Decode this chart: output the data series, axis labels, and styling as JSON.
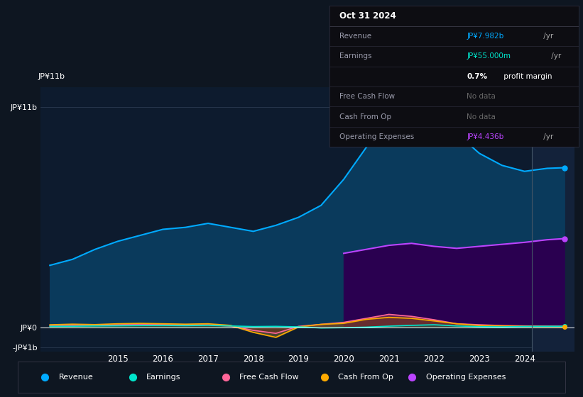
{
  "background_color": "#0e1621",
  "chart_bg_color": "#0d1b2e",
  "ylim": [
    -1200000000.0,
    12000000000.0
  ],
  "y_tick_0": 0,
  "y_tick_top": 11000000000.0,
  "y_tick_bot": -1000000000.0,
  "y_label_top": "JP¥11b",
  "y_label_0": "JP¥0",
  "y_label_bot": "-JP¥1b",
  "x_years": [
    2013.5,
    2014,
    2014.5,
    2015,
    2015.5,
    2016,
    2016.5,
    2017,
    2017.5,
    2018,
    2018.5,
    2019,
    2019.5,
    2020,
    2020.5,
    2021,
    2021.5,
    2022,
    2022.5,
    2023,
    2023.5,
    2024,
    2024.5,
    2024.88
  ],
  "revenue": [
    3100000000,
    3400000000,
    3900000000,
    4300000000,
    4600000000,
    4900000000,
    5000000000,
    5200000000,
    5000000000,
    4800000000,
    5100000000,
    5500000000,
    6100000000,
    7400000000,
    9000000000,
    10400000000,
    10700000000,
    10500000000,
    9700000000,
    8700000000,
    8100000000,
    7800000000,
    7950000000,
    7982000000
  ],
  "earnings": [
    50000000,
    55000000,
    70000000,
    80000000,
    90000000,
    95000000,
    85000000,
    100000000,
    70000000,
    40000000,
    50000000,
    25000000,
    -30000000,
    -15000000,
    10000000,
    60000000,
    100000000,
    130000000,
    70000000,
    35000000,
    25000000,
    45000000,
    52000000,
    55000000
  ],
  "free_cash_flow": [
    80000000,
    100000000,
    90000000,
    130000000,
    160000000,
    140000000,
    120000000,
    130000000,
    60000000,
    -150000000,
    -300000000,
    50000000,
    150000000,
    250000000,
    450000000,
    650000000,
    550000000,
    380000000,
    180000000,
    130000000,
    90000000,
    70000000,
    60000000,
    55000000
  ],
  "cash_from_op": [
    130000000,
    160000000,
    140000000,
    180000000,
    200000000,
    180000000,
    160000000,
    180000000,
    100000000,
    -250000000,
    -500000000,
    20000000,
    150000000,
    200000000,
    400000000,
    500000000,
    450000000,
    320000000,
    180000000,
    90000000,
    70000000,
    50000000,
    45000000,
    40000000
  ],
  "op_expenses_x": [
    2020,
    2020.5,
    2021,
    2021.5,
    2022,
    2022.5,
    2023,
    2023.5,
    2024,
    2024.5,
    2024.88
  ],
  "op_expenses_y": [
    3700000000,
    3900000000,
    4100000000,
    4200000000,
    4050000000,
    3950000000,
    4050000000,
    4150000000,
    4250000000,
    4380000000,
    4436000000
  ],
  "revenue_color": "#00aaff",
  "earnings_color": "#00e5cc",
  "fcf_color": "#ff6699",
  "cfop_color": "#ffaa00",
  "opex_color": "#bb44ff",
  "revenue_fill": "#0a3a5c",
  "opex_fill": "#2a0050",
  "legend_items": [
    {
      "label": "Revenue",
      "color": "#00aaff"
    },
    {
      "label": "Earnings",
      "color": "#00e5cc"
    },
    {
      "label": "Free Cash Flow",
      "color": "#ff6699"
    },
    {
      "label": "Cash From Op",
      "color": "#ffaa00"
    },
    {
      "label": "Operating Expenses",
      "color": "#bb44ff"
    }
  ],
  "x_tick_labels": [
    "2015",
    "2016",
    "2017",
    "2018",
    "2019",
    "2020",
    "2021",
    "2022",
    "2023",
    "2024"
  ],
  "x_tick_positions": [
    2015,
    2016,
    2017,
    2018,
    2019,
    2020,
    2021,
    2022,
    2023,
    2024
  ],
  "shade_start": 2024.17,
  "xmin": 2013.3,
  "xmax": 2025.1,
  "box_date": "Oct 31 2024",
  "box_rows": [
    {
      "label": "Revenue",
      "value": "JP¥7.982b",
      "suffix": " /yr",
      "vcolor": "#00aaff",
      "nodata": false
    },
    {
      "label": "Earnings",
      "value": "JP¥55.000m",
      "suffix": " /yr",
      "vcolor": "#00e5cc",
      "nodata": false
    },
    {
      "label": "",
      "value": "0.7%",
      "suffix": " profit margin",
      "vcolor": "#ffffff",
      "bold": true,
      "nodata": false
    },
    {
      "label": "Free Cash Flow",
      "value": "No data",
      "suffix": "",
      "vcolor": "#666666",
      "nodata": true
    },
    {
      "label": "Cash From Op",
      "value": "No data",
      "suffix": "",
      "vcolor": "#666666",
      "nodata": true
    },
    {
      "label": "Operating Expenses",
      "value": "JP¥4.436b",
      "suffix": " /yr",
      "vcolor": "#bb44ff",
      "nodata": false
    }
  ]
}
